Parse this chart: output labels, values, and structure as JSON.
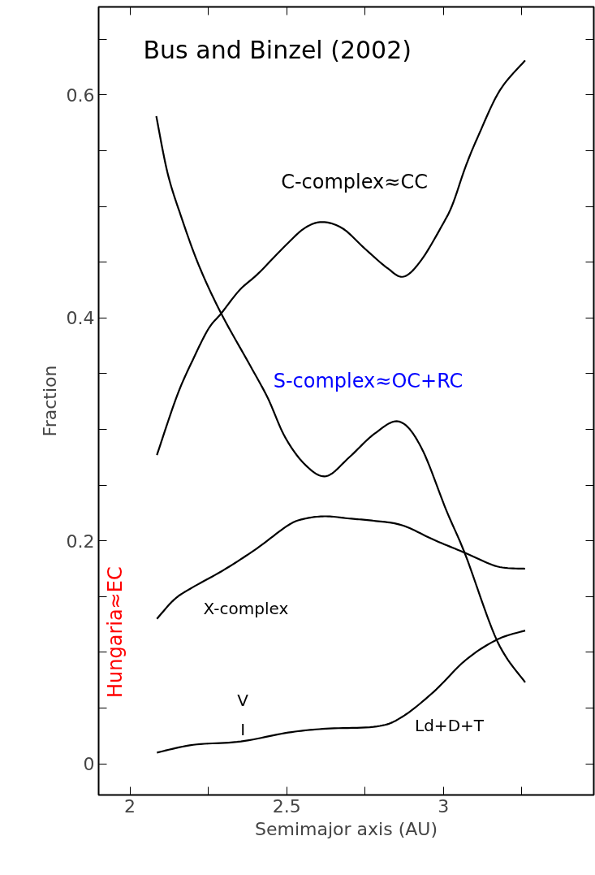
{
  "chart_data": {
    "type": "line",
    "title": "Bus and Binzel (2002)",
    "xlabel": "Semimajor axis (AU)",
    "ylabel": "Fraction",
    "xlim": [
      1.9,
      3.48
    ],
    "ylim": [
      -0.028,
      0.679
    ],
    "xticks": [
      2,
      {
        "value": 2.25,
        "label": null
      },
      2.5,
      {
        "value": 2.75,
        "label": null
      },
      3,
      {
        "value": 3.25,
        "label": null
      }
    ],
    "yticks": [
      0,
      {
        "value": 0.05,
        "label": null
      },
      {
        "value": 0.1,
        "label": null
      },
      {
        "value": 0.15,
        "label": null
      },
      0.2,
      {
        "value": 0.25,
        "label": null
      },
      {
        "value": 0.3,
        "label": null
      },
      {
        "value": 0.35,
        "label": null
      },
      0.4,
      {
        "value": 0.45,
        "label": null
      },
      {
        "value": 0.5,
        "label": null
      },
      {
        "value": 0.55,
        "label": null
      },
      0.6,
      {
        "value": 0.65,
        "label": null
      }
    ],
    "grid": false,
    "marker": "none",
    "line_style": "solid",
    "series": [
      {
        "name": "C-complex≈CC",
        "color": "#000000",
        "x": [
          2.086,
          2.15,
          2.2,
          2.25,
          2.291,
          2.35,
          2.41,
          2.5,
          2.56,
          2.616,
          2.68,
          2.75,
          2.82,
          2.873,
          2.93,
          3.0,
          3.031,
          3.07,
          3.111,
          3.18,
          3.261
        ],
        "values": [
          0.277,
          0.33,
          0.362,
          0.39,
          0.404,
          0.425,
          0.44,
          0.466,
          0.481,
          0.486,
          0.48,
          0.462,
          0.445,
          0.437,
          0.452,
          0.485,
          0.503,
          0.535,
          0.563,
          0.604,
          0.631
        ]
      },
      {
        "name": "S-complex≈OC+RC",
        "color": "#000000",
        "x": [
          2.084,
          2.12,
          2.162,
          2.22,
          2.291,
          2.384,
          2.44,
          2.495,
          2.56,
          2.626,
          2.7,
          2.78,
          2.859,
          2.929,
          3.01,
          3.071,
          3.172,
          3.261
        ],
        "values": [
          0.581,
          0.53,
          0.492,
          0.447,
          0.404,
          0.357,
          0.328,
          0.293,
          0.268,
          0.258,
          0.275,
          0.296,
          0.307,
          0.284,
          0.227,
          0.187,
          0.11,
          0.073
        ]
      },
      {
        "name": "X-complex",
        "color": "#000000",
        "x": [
          2.086,
          2.14,
          2.192,
          2.3,
          2.404,
          2.505,
          2.56,
          2.626,
          2.7,
          2.778,
          2.868,
          2.969,
          3.071,
          3.172,
          3.261
        ],
        "values": [
          0.13,
          0.147,
          0.157,
          0.174,
          0.193,
          0.214,
          0.22,
          0.222,
          0.22,
          0.218,
          0.214,
          0.201,
          0.189,
          0.177,
          0.175
        ]
      },
      {
        "name": "Ld+D+T",
        "color": "#000000",
        "x": [
          2.086,
          2.202,
          2.354,
          2.505,
          2.626,
          2.788,
          2.868,
          2.969,
          3.071,
          3.172,
          3.261
        ],
        "values": [
          0.01,
          0.017,
          0.02,
          0.028,
          0.0315,
          0.0335,
          0.042,
          0.0645,
          0.093,
          0.1115,
          0.1195
        ]
      }
    ],
    "annotations": [
      "V",
      "I",
      "Hungaria≈EC"
    ]
  }
}
